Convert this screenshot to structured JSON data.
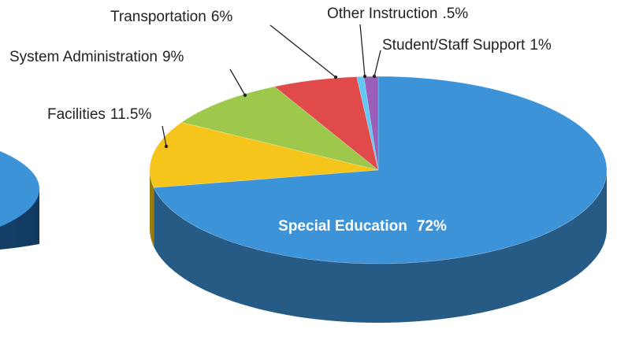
{
  "chart_data": {
    "type": "pie",
    "categories": [
      "Special Education",
      "Facilities",
      "System Administration",
      "Transportation",
      "Other Instruction",
      "Student/Staff Support"
    ],
    "values": [
      72,
      11.5,
      9,
      6,
      0.5,
      1
    ],
    "value_labels": [
      "72%",
      "11.5%",
      "9%",
      "6%",
      ".5%",
      "1%"
    ],
    "colors": [
      "#3d93d8",
      "#f5c51b",
      "#9dc84b",
      "#e04a4a",
      "#5ec9f3",
      "#9a5fb8"
    ]
  }
}
